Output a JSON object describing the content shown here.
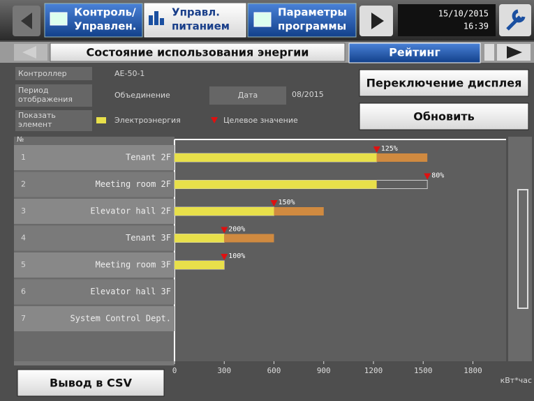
{
  "toolbar": {
    "control": [
      "Контроль/",
      "Управлен."
    ],
    "power": [
      "Управл.",
      "питанием"
    ],
    "schedule": [
      "Параметры",
      "программы"
    ],
    "date": "15/10/2015",
    "time": "16:39"
  },
  "tabs": [
    "Состояние использования энергии",
    "Рейтинг"
  ],
  "info": {
    "controller_label": "Контроллер",
    "controller_value": "AE-50-1",
    "period_label": [
      "Период",
      "отображения"
    ],
    "period_value": "Объединение",
    "date_label": "Дата",
    "date_value": "08/2015",
    "show_label": [
      "Показать",
      "элемент"
    ]
  },
  "buttons": {
    "switch_display": "Переключение дисплея",
    "refresh": "Обновить",
    "csv": "Вывод в CSV"
  },
  "chart_data": {
    "type": "bar",
    "orientation": "horizontal",
    "number_header": "№",
    "row_numbers": [
      "1",
      "2",
      "3",
      "4",
      "5",
      "6",
      "7"
    ],
    "categories": [
      "Tenant 2F",
      "Meeting room 2F",
      "Elevator hall 2F",
      "Tenant 3F",
      "Meeting room 3F",
      "Elevator hall 3F",
      "System Control Dept."
    ],
    "series": [
      {
        "name": "Электроэнергия",
        "color": "#e8e04a",
        "excess_color": "#d08a40",
        "values": [
          1525,
          1220,
          900,
          600,
          300,
          null,
          null
        ]
      },
      {
        "name": "Целевое значение",
        "color": "#e01010",
        "values": [
          1220,
          1525,
          600,
          300,
          300,
          null,
          null
        ]
      }
    ],
    "rate_labels": [
      "125%",
      "80%",
      "150%",
      "200%",
      "100%",
      null,
      null
    ],
    "xlim": [
      0,
      2000
    ],
    "xticks": [
      0,
      300,
      600,
      900,
      1200,
      1500,
      1800
    ],
    "x_unit": "кВт*час"
  }
}
